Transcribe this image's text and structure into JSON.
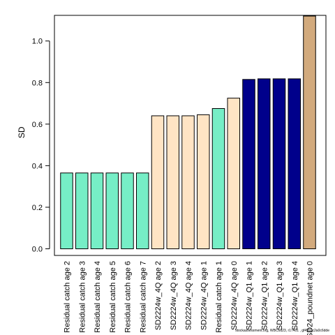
{
  "chart_data": {
    "type": "bar",
    "ylabel": "SD",
    "ylim": [
      0,
      1.12
    ],
    "yticks": [
      0.0,
      0.2,
      0.4,
      0.6,
      0.8,
      1.0
    ],
    "ytick_labels": [
      "0.0",
      "0.2",
      "0.4",
      "0.6",
      "0.8",
      "1.0"
    ],
    "categories": [
      "Residual catch age 2",
      "Residual catch age 3",
      "Residual catch age 4",
      "Residual catch age 5",
      "Residual catch age 6",
      "Residual catch age 7",
      "SD2224w_4Q age 2",
      "SD2224w_4Q age 3",
      "SD2224w_4Q age 4",
      "SD2224w_4Q age 1",
      "Residual catch age 1",
      "SD2224w_4Q age 0",
      "SD2224w_Q1 age 1",
      "SD2224w_Q1 age 2",
      "SD2224w_Q1 age 3",
      "SD2224w_Q1 age 4",
      "SD24_poundnet age 0"
    ],
    "values": [
      0.365,
      0.365,
      0.365,
      0.365,
      0.365,
      0.365,
      0.64,
      0.64,
      0.64,
      0.645,
      0.675,
      0.725,
      0.815,
      0.818,
      0.818,
      0.818,
      1.12
    ],
    "bar_colors": [
      "#76EEC6",
      "#76EEC6",
      "#76EEC6",
      "#76EEC6",
      "#76EEC6",
      "#76EEC6",
      "#FFE4C4",
      "#FFE4C4",
      "#FFE4C4",
      "#FFE4C4",
      "#76EEC6",
      "#FFE4C4",
      "#00008B",
      "#00008B",
      "#00008B",
      "#00008B",
      "#D2AA7D"
    ]
  },
  "footer": "stockassessment.org, WBCod23, r17401 , gf4992c2a0c6dde"
}
